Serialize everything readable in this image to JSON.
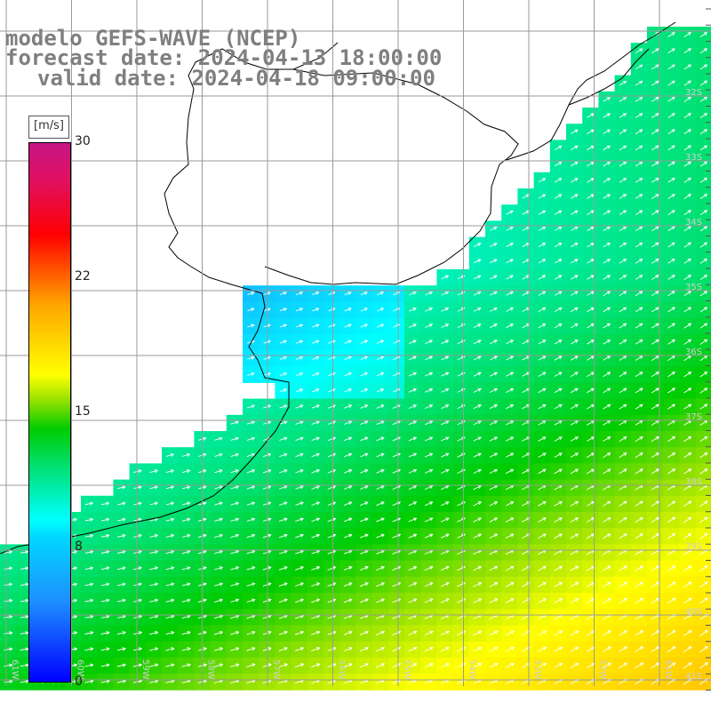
{
  "title": {
    "model": "modelo GEFS-WAVE (NCEP)",
    "forecast": "forecast date: 2024-04-13 18:00:00",
    "valid": "valid date: 2024-04-18 09:00:00"
  },
  "colorbar": {
    "unit": "[m/s]",
    "ticks": [
      "30",
      "22",
      "15",
      "8",
      "0"
    ],
    "colors": [
      "#0000ff",
      "#1e90ff",
      "#00ffff",
      "#00cc00",
      "#ffff00",
      "#ffa500",
      "#ff0000",
      "#c71585"
    ]
  },
  "lat_labels": [
    "32S",
    "33S",
    "34S",
    "35S",
    "36S",
    "37S",
    "38S",
    "39S",
    "40S",
    "41S"
  ],
  "lon_labels": [
    "61W",
    "60W",
    "59W",
    "58W",
    "57W",
    "56W",
    "55W",
    "54W",
    "53W",
    "52W",
    "51W"
  ],
  "land_color": "#ffffff",
  "grid_color": "#9a9a9a"
}
